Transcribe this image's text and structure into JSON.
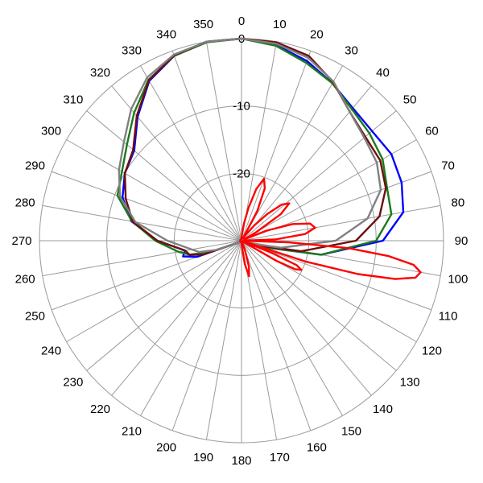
{
  "chart_data": {
    "type": "polar-line",
    "title": "",
    "angle_unit": "degrees",
    "angle_zero": "top",
    "angle_direction": "clockwise",
    "angle_ticks": [
      "0",
      "10",
      "20",
      "30",
      "40",
      "50",
      "60",
      "70",
      "80",
      "90",
      "100",
      "110",
      "120",
      "130",
      "140",
      "150",
      "160",
      "170",
      "180",
      "190",
      "200",
      "210",
      "220",
      "230",
      "240",
      "250",
      "260",
      "270",
      "280",
      "290",
      "300",
      "310",
      "320",
      "330",
      "340",
      "350"
    ],
    "angle_tick_values": [
      0,
      10,
      20,
      30,
      40,
      50,
      60,
      70,
      80,
      90,
      100,
      110,
      120,
      130,
      140,
      150,
      160,
      170,
      180,
      190,
      200,
      210,
      220,
      230,
      240,
      250,
      260,
      270,
      280,
      290,
      300,
      310,
      320,
      330,
      340,
      350
    ],
    "radial_ticks": [
      "0",
      "-10",
      "-20"
    ],
    "radial_tick_values": [
      0,
      -10,
      -20
    ],
    "radial_range": [
      -30,
      0
    ],
    "grid": true,
    "series": [
      {
        "color": "#0000ff",
        "angles": [
          0,
          10,
          20,
          30,
          40,
          50,
          60,
          70,
          80,
          90,
          100,
          105,
          110,
          115,
          120,
          130,
          140,
          150,
          160,
          170,
          180,
          190,
          200,
          210,
          220,
          230,
          240,
          250,
          255,
          260,
          270,
          280,
          290,
          300,
          310,
          320,
          330,
          340,
          350,
          360
        ],
        "values": [
          0,
          -0.5,
          -1.6,
          -3,
          -4.3,
          -4.7,
          -4.3,
          -4.7,
          -5.6,
          -9,
          -18,
          -26,
          -29.5,
          -29.5,
          -29.6,
          -29.7,
          -29.8,
          -29.8,
          -29.8,
          -29.8,
          -29.8,
          -29.8,
          -29.8,
          -29.8,
          -29.8,
          -29.8,
          -29.5,
          -23,
          -21,
          -21.5,
          -17.5,
          -13.4,
          -11.2,
          -10,
          -9.2,
          -6,
          -2.6,
          -0.8,
          0,
          0
        ]
      },
      {
        "color": "#1a7a1a",
        "angles": [
          0,
          10,
          20,
          30,
          40,
          50,
          60,
          70,
          80,
          90,
          100,
          105,
          110,
          115,
          120,
          130,
          140,
          150,
          160,
          170,
          180,
          190,
          200,
          210,
          220,
          230,
          240,
          250,
          255,
          260,
          270,
          280,
          290,
          300,
          310,
          320,
          330,
          340,
          350,
          360
        ],
        "values": [
          0,
          -0.6,
          -1.9,
          -3,
          -4.5,
          -5.2,
          -5.8,
          -7,
          -7.4,
          -10,
          -18,
          -26,
          -29.5,
          -29.5,
          -29.6,
          -29.7,
          -29.8,
          -29.8,
          -29.8,
          -29.8,
          -29.8,
          -29.8,
          -29.8,
          -29.8,
          -29.8,
          -29.8,
          -29.5,
          -25,
          -22,
          -20.5,
          -17.2,
          -13.5,
          -10.4,
          -9.5,
          -7.8,
          -5.2,
          -2.4,
          -0.8,
          -0.1,
          0
        ]
      },
      {
        "color": "#6e0e0e",
        "angles": [
          0,
          10,
          20,
          30,
          40,
          50,
          60,
          70,
          80,
          90,
          100,
          105,
          110,
          115,
          120,
          130,
          140,
          150,
          160,
          170,
          180,
          190,
          200,
          210,
          220,
          230,
          240,
          250,
          255,
          260,
          270,
          280,
          290,
          300,
          310,
          320,
          330,
          340,
          350,
          360
        ],
        "values": [
          0,
          -0.1,
          -0.8,
          -2.8,
          -5,
          -6,
          -6.2,
          -7.2,
          -9.2,
          -13,
          -21,
          -27,
          -29.5,
          -29.5,
          -29.6,
          -29.7,
          -29.8,
          -29.8,
          -29.8,
          -29.8,
          -29.8,
          -29.8,
          -29.8,
          -29.8,
          -29.8,
          -29.8,
          -29.5,
          -24,
          -22,
          -21.5,
          -17.5,
          -13.6,
          -11.7,
          -10,
          -9,
          -5.8,
          -2.5,
          -0.7,
          0,
          0
        ]
      },
      {
        "color": "#808080",
        "angles": [
          0,
          10,
          20,
          30,
          40,
          50,
          60,
          70,
          80,
          90,
          100,
          105,
          110,
          115,
          120,
          130,
          140,
          150,
          160,
          170,
          180,
          190,
          200,
          210,
          220,
          230,
          240,
          250,
          255,
          260,
          270,
          280,
          290,
          300,
          310,
          320,
          330,
          340,
          350,
          360
        ],
        "values": [
          0,
          -0.3,
          -1.1,
          -2.7,
          -5,
          -6.2,
          -6.8,
          -8,
          -11,
          -16,
          -24,
          -28,
          -29.5,
          -29.5,
          -29.6,
          -29.7,
          -29.8,
          -29.8,
          -29.8,
          -29.8,
          -29.8,
          -29.8,
          -29.8,
          -29.8,
          -29.8,
          -29.8,
          -29.5,
          -26,
          -23.5,
          -22.5,
          -19,
          -14,
          -10.8,
          -9,
          -7.2,
          -4.5,
          -2,
          -0.6,
          0,
          0
        ]
      },
      {
        "color": "#ff0000",
        "angles": [
          0,
          4,
          8,
          12,
          16,
          20,
          24,
          28,
          32,
          36,
          40,
          44,
          48,
          52,
          56,
          60,
          64,
          68,
          72,
          76,
          80,
          84,
          88,
          90,
          92,
          94,
          96,
          98,
          100,
          102,
          104,
          106,
          108,
          110,
          112,
          114,
          116,
          118,
          120,
          124,
          128,
          132,
          136,
          140,
          144,
          148,
          152,
          156,
          160,
          164,
          168,
          172,
          176,
          180,
          190,
          200,
          210,
          220,
          230,
          240,
          250,
          260,
          270,
          280,
          290,
          300,
          310,
          320,
          330,
          340,
          350,
          360
        ],
        "values": [
          -29.5,
          -29,
          -27.5,
          -25,
          -22,
          -20.2,
          -21.5,
          -25,
          -29.6,
          -29,
          -27,
          -24.5,
          -22,
          -21,
          -23,
          -27.5,
          -29.5,
          -26,
          -22,
          -19.5,
          -18.9,
          -20.5,
          -25,
          -29.8,
          -23,
          -14,
          -8,
          -4.2,
          -3,
          -3.6,
          -6.5,
          -12,
          -20,
          -29.8,
          -25,
          -21,
          -20.1,
          -21,
          -24,
          -29.8,
          -29.8,
          -29.8,
          -29.8,
          -29.8,
          -29.8,
          -29.8,
          -29.8,
          -29.8,
          -28.5,
          -26,
          -24.6,
          -26.5,
          -29,
          -29.8,
          -29.8,
          -29.8,
          -29.8,
          -29.8,
          -29.8,
          -29.8,
          -29.8,
          -29.8,
          -29.8,
          -29.8,
          -29.8,
          -29.8,
          -29.8,
          -29.8,
          -29.8,
          -29.8,
          -29.8,
          -29.5
        ]
      }
    ]
  }
}
